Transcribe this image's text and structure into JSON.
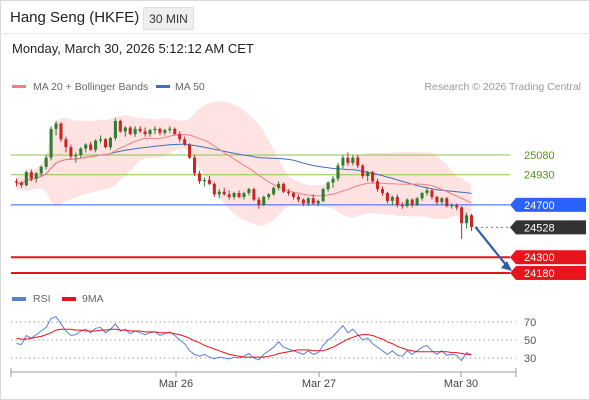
{
  "header": {
    "title": "Hang Seng (HKFE)",
    "timeframe": "30 MIN",
    "datetime": "Monday, March 30, 2026 5:12:12 AM CET"
  },
  "colors": {
    "ma20": "#f08080",
    "band": "#ffdede",
    "ma50": "#3f6fb5",
    "level_green": "#8bc34a",
    "pivot": "#2962ff",
    "support": "#e8141c",
    "current": "#333333",
    "up": "#2e7d32",
    "down": "#c62828",
    "arrow": "#2f5ea8",
    "rsi": "#5b7fd8",
    "rsi_ma": "#e8141c"
  },
  "chart_data": [
    {
      "type": "candlestick",
      "title": "Hang Seng (HKFE)",
      "legend": [
        {
          "name": "MA 20 + Bollinger Bands",
          "color": "#f08080"
        },
        {
          "name": "MA 50",
          "color": "#3f6fb5"
        }
      ],
      "credit": "Research © 2026 Trading Central",
      "ylim": [
        24050,
        25500
      ],
      "x_ticks": [
        "Mar 26",
        "Mar 27",
        "Mar 30"
      ],
      "levels": [
        {
          "value": 25080,
          "label": "25080",
          "style": "green"
        },
        {
          "value": 24930,
          "label": "24930",
          "style": "green"
        },
        {
          "value": 24700,
          "label": "24700",
          "style": "pivot"
        },
        {
          "value": 24528,
          "label": "24528",
          "style": "current"
        },
        {
          "value": 24300,
          "label": "24300",
          "style": "support"
        },
        {
          "value": 24180,
          "label": "24180",
          "style": "support"
        }
      ],
      "candles": [
        [
          24880,
          24900,
          24840,
          24870
        ],
        [
          24870,
          24880,
          24830,
          24850
        ],
        [
          24850,
          24960,
          24840,
          24950
        ],
        [
          24950,
          24970,
          24880,
          24900
        ],
        [
          24900,
          24950,
          24870,
          24940
        ],
        [
          24940,
          25000,
          24920,
          24990
        ],
        [
          24990,
          25080,
          24970,
          25060
        ],
        [
          25060,
          25300,
          25040,
          25280
        ],
        [
          25280,
          25340,
          25230,
          25320
        ],
        [
          25320,
          25330,
          25180,
          25200
        ],
        [
          25200,
          25220,
          25100,
          25140
        ],
        [
          25140,
          25160,
          25050,
          25070
        ],
        [
          25070,
          25100,
          25020,
          25080
        ],
        [
          25080,
          25140,
          25060,
          25130
        ],
        [
          25130,
          25170,
          25100,
          25160
        ],
        [
          25160,
          25180,
          25110,
          25120
        ],
        [
          25120,
          25200,
          25100,
          25190
        ],
        [
          25190,
          25230,
          25170,
          25200
        ],
        [
          25200,
          25210,
          25130,
          25140
        ],
        [
          25140,
          25220,
          25120,
          25210
        ],
        [
          25210,
          25360,
          25190,
          25340
        ],
        [
          25340,
          25350,
          25250,
          25260
        ],
        [
          25260,
          25300,
          25220,
          25290
        ],
        [
          25290,
          25300,
          25230,
          25240
        ],
        [
          25240,
          25300,
          25220,
          25280
        ],
        [
          25280,
          25300,
          25250,
          25260
        ],
        [
          25260,
          25290,
          25220,
          25240
        ],
        [
          25240,
          25280,
          25220,
          25270
        ],
        [
          25270,
          25300,
          25240,
          25280
        ],
        [
          25280,
          25290,
          25230,
          25250
        ],
        [
          25250,
          25280,
          25230,
          25270
        ],
        [
          25270,
          25300,
          25250,
          25280
        ],
        [
          25280,
          25290,
          25230,
          25240
        ],
        [
          25240,
          25260,
          25180,
          25200
        ],
        [
          25200,
          25220,
          25150,
          25160
        ],
        [
          25160,
          25170,
          25050,
          25060
        ],
        [
          25060,
          25080,
          24920,
          24940
        ],
        [
          24940,
          24960,
          24860,
          24880
        ],
        [
          24880,
          24910,
          24840,
          24890
        ],
        [
          24890,
          24920,
          24850,
          24860
        ],
        [
          24860,
          24870,
          24760,
          24780
        ],
        [
          24780,
          24820,
          24750,
          24800
        ],
        [
          24800,
          24830,
          24770,
          24780
        ],
        [
          24780,
          24810,
          24740,
          24760
        ],
        [
          24760,
          24800,
          24740,
          24790
        ],
        [
          24790,
          24810,
          24750,
          24760
        ],
        [
          24760,
          24800,
          24740,
          24790
        ],
        [
          24790,
          24830,
          24770,
          24820
        ],
        [
          24820,
          24830,
          24730,
          24740
        ],
        [
          24740,
          24760,
          24670,
          24700
        ],
        [
          24700,
          24770,
          24690,
          24760
        ],
        [
          24760,
          24790,
          24740,
          24780
        ],
        [
          24780,
          24840,
          24770,
          24830
        ],
        [
          24830,
          24880,
          24810,
          24860
        ],
        [
          24860,
          24870,
          24790,
          24800
        ],
        [
          24800,
          24820,
          24770,
          24790
        ],
        [
          24790,
          24800,
          24740,
          24760
        ],
        [
          24760,
          24780,
          24720,
          24740
        ],
        [
          24740,
          24750,
          24690,
          24710
        ],
        [
          24710,
          24760,
          24690,
          24750
        ],
        [
          24750,
          24780,
          24700,
          24710
        ],
        [
          24710,
          24740,
          24690,
          24730
        ],
        [
          24730,
          24830,
          24720,
          24820
        ],
        [
          24820,
          24880,
          24800,
          24870
        ],
        [
          24870,
          24920,
          24830,
          24900
        ],
        [
          24900,
          25020,
          24880,
          25000
        ],
        [
          25000,
          25080,
          24980,
          25060
        ],
        [
          25060,
          25100,
          25000,
          25020
        ],
        [
          25020,
          25080,
          25000,
          25060
        ],
        [
          25060,
          25080,
          24980,
          25000
        ],
        [
          25000,
          25010,
          24900,
          24920
        ],
        [
          24920,
          24960,
          24880,
          24950
        ],
        [
          24950,
          24960,
          24870,
          24880
        ],
        [
          24880,
          24900,
          24800,
          24820
        ],
        [
          24820,
          24840,
          24770,
          24790
        ],
        [
          24790,
          24800,
          24710,
          24730
        ],
        [
          24730,
          24770,
          24700,
          24760
        ],
        [
          24760,
          24780,
          24680,
          24700
        ],
        [
          24700,
          24720,
          24670,
          24690
        ],
        [
          24690,
          24750,
          24680,
          24740
        ],
        [
          24740,
          24750,
          24680,
          24700
        ],
        [
          24700,
          24760,
          24690,
          24750
        ],
        [
          24750,
          24800,
          24730,
          24790
        ],
        [
          24790,
          24830,
          24770,
          24810
        ],
        [
          24810,
          24820,
          24740,
          24760
        ],
        [
          24760,
          24770,
          24700,
          24720
        ],
        [
          24720,
          24760,
          24700,
          24750
        ],
        [
          24750,
          24760,
          24680,
          24690
        ],
        [
          24690,
          24710,
          24670,
          24700
        ],
        [
          24700,
          24710,
          24660,
          24680
        ],
        [
          24680,
          24690,
          24440,
          24560
        ],
        [
          24560,
          24640,
          24520,
          24620
        ],
        [
          24620,
          24630,
          24500,
          24530
        ]
      ]
    },
    {
      "type": "line",
      "legend": [
        {
          "name": "RSI",
          "color": "#5b7fd8"
        },
        {
          "name": "9MA",
          "color": "#e8141c"
        }
      ],
      "ylim": [
        20,
        80
      ],
      "y_ticks": [
        30,
        50,
        70
      ],
      "series": [
        {
          "name": "RSI",
          "values": [
            46,
            45,
            55,
            52,
            56,
            60,
            64,
            74,
            76,
            68,
            60,
            55,
            56,
            60,
            62,
            58,
            63,
            64,
            58,
            62,
            68,
            60,
            62,
            57,
            60,
            58,
            56,
            58,
            59,
            55,
            57,
            59,
            55,
            50,
            46,
            38,
            34,
            32,
            34,
            31,
            29,
            31,
            30,
            29,
            31,
            30,
            32,
            35,
            30,
            28,
            34,
            38,
            42,
            48,
            42,
            40,
            38,
            36,
            34,
            38,
            34,
            36,
            44,
            50,
            54,
            60,
            66,
            58,
            62,
            56,
            50,
            52,
            46,
            42,
            38,
            34,
            38,
            33,
            32,
            38,
            34,
            38,
            42,
            44,
            38,
            34,
            38,
            33,
            34,
            33,
            27,
            36,
            33
          ]
        },
        {
          "name": "9MA",
          "values": [
            52,
            51,
            51,
            52,
            53,
            54,
            56,
            58,
            61,
            62,
            62,
            62,
            61,
            61,
            60,
            60,
            60,
            61,
            61,
            62,
            62,
            61,
            61,
            60,
            60,
            60,
            59,
            59,
            59,
            58,
            58,
            58,
            57,
            56,
            54,
            52,
            49,
            47,
            44,
            42,
            40,
            38,
            36,
            34,
            33,
            32,
            31,
            31,
            31,
            31,
            31,
            32,
            33,
            35,
            36,
            37,
            38,
            39,
            39,
            39,
            38,
            38,
            38,
            40,
            42,
            45,
            48,
            51,
            53,
            55,
            56,
            56,
            55,
            53,
            51,
            48,
            46,
            43,
            41,
            39,
            38,
            37,
            37,
            37,
            37,
            37,
            37,
            37,
            36,
            36,
            35,
            34,
            34
          ]
        }
      ]
    }
  ]
}
